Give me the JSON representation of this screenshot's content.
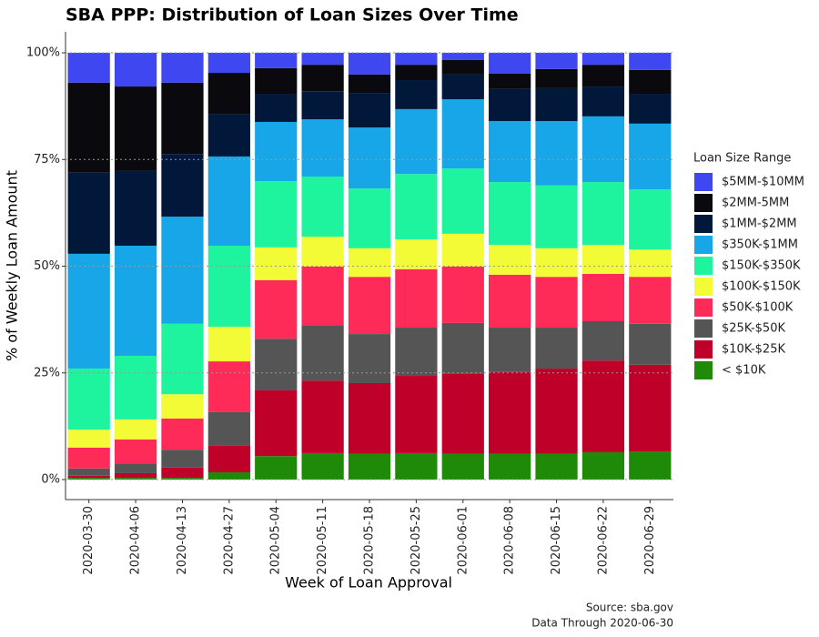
{
  "chart_data": {
    "type": "stacked_bar",
    "title": "SBA PPP: Distribution of Loan Sizes Over Time",
    "x_label": "Week of Loan Approval",
    "y_label": "% of Weekly Loan Amount",
    "legend_title": "Loan Size Range",
    "legend_position": "right",
    "caption": [
      "Source: sba.gov",
      "Data Through 2020-06-30"
    ],
    "categories": [
      "2020-03-30",
      "2020-04-06",
      "2020-04-13",
      "2020-04-27",
      "2020-05-04",
      "2020-05-11",
      "2020-05-18",
      "2020-05-25",
      "2020-06-01",
      "2020-06-08",
      "2020-06-15",
      "2020-06-22",
      "2020-06-29"
    ],
    "ylim": [
      0,
      100
    ],
    "yticks": [
      {
        "value": 0,
        "label": "0%"
      },
      {
        "value": 25,
        "label": "25%"
      },
      {
        "value": 50,
        "label": "50%"
      },
      {
        "value": 75,
        "label": "75%"
      },
      {
        "value": 100,
        "label": "100%"
      }
    ],
    "grid": true,
    "series": [
      {
        "name": "$5MM-$10MM",
        "color": "#3f48f0",
        "values": [
          7.0,
          7.9,
          7.0,
          4.7,
          3.6,
          2.8,
          5.1,
          2.8,
          1.7,
          4.9,
          3.8,
          2.8,
          4.0
        ]
      },
      {
        "name": "$2MM-5MM",
        "color": "#0a0a0e",
        "values": [
          21.1,
          19.8,
          16.7,
          9.6,
          6.0,
          6.2,
          4.3,
          3.6,
          3.4,
          3.6,
          4.5,
          5.1,
          5.6
        ]
      },
      {
        "name": "$1MM-$2MM",
        "color": "#02183a",
        "values": [
          19.0,
          17.5,
          14.7,
          10.0,
          6.6,
          6.6,
          8.1,
          6.8,
          5.8,
          7.5,
          7.7,
          7.0,
          7.0
        ]
      },
      {
        "name": "$350K-$1MM",
        "color": "#17a6e8",
        "values": [
          26.9,
          25.8,
          25.1,
          20.9,
          13.9,
          13.4,
          14.3,
          15.2,
          16.2,
          14.3,
          15.1,
          15.4,
          15.4
        ]
      },
      {
        "name": "$150K-$350K",
        "color": "#1ef49d",
        "values": [
          14.3,
          14.9,
          16.5,
          19.0,
          15.5,
          14.1,
          14.0,
          15.3,
          15.3,
          14.7,
          14.7,
          14.7,
          14.1
        ]
      },
      {
        "name": "$100K-$150K",
        "color": "#f2fb36",
        "values": [
          4.2,
          4.7,
          5.7,
          8.1,
          7.7,
          7.0,
          6.7,
          7.0,
          7.7,
          7.0,
          6.7,
          6.8,
          6.4
        ]
      },
      {
        "name": "$50K-$100K",
        "color": "#fe2a57",
        "values": [
          4.9,
          5.6,
          7.3,
          11.9,
          13.7,
          13.7,
          13.4,
          13.7,
          13.2,
          12.4,
          11.9,
          11.1,
          11.0
        ]
      },
      {
        "name": "$25K-$50K",
        "color": "#555555",
        "values": [
          1.7,
          2.3,
          4.2,
          7.9,
          12.1,
          13.0,
          11.5,
          11.3,
          11.8,
          10.4,
          9.6,
          9.2,
          9.6
        ]
      },
      {
        "name": "$10K-$25K",
        "color": "#bf0029",
        "values": [
          0.5,
          1.1,
          2.4,
          6.2,
          15.4,
          17.0,
          16.6,
          18.1,
          18.9,
          19.2,
          20.0,
          21.5,
          20.3
        ]
      },
      {
        "name": "< $10K",
        "color": "#1e8a08",
        "values": [
          0.4,
          0.4,
          0.4,
          1.7,
          5.5,
          6.2,
          6.0,
          6.2,
          6.0,
          6.0,
          6.0,
          6.4,
          6.6
        ]
      }
    ]
  }
}
